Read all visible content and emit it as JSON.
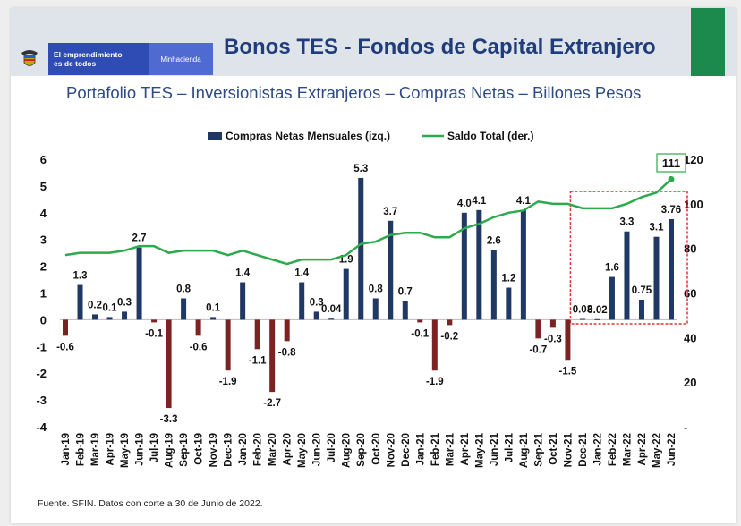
{
  "header": {
    "brand_line": "El emprendimiento\nes de todos",
    "ministry": "Minhacienda",
    "title": "Bonos TES - Fondos de Capital Extranjero"
  },
  "subtitle": "Portafolio TES – Inversionistas Extranjeros – Compras Netas – Billones Pesos",
  "footer": "Fuente. SFIN. Datos con corte a 30 de Junio de 2022.",
  "colors": {
    "header_bg": "#dfe3ea",
    "brand_blue": "#2f4bb4",
    "title_blue": "#1f3d7a",
    "bar_positive": "#1f3864",
    "bar_negative": "#7b2323",
    "line_green": "#2eaa4e",
    "highlight_red": "#e03030",
    "accent_green": "#1c8a4c"
  },
  "icons": [
    "colombia-coat-of-arms-icon"
  ],
  "chart_data": {
    "type": "bar",
    "legend_placement": "top-center",
    "grid": false,
    "categories": [
      "Jan-19",
      "Feb-19",
      "Mar-19",
      "Apr-19",
      "May-19",
      "Jun-19",
      "Jul-19",
      "Aug-19",
      "Sep-19",
      "Oct-19",
      "Nov-19",
      "Dec-19",
      "Jan-20",
      "Feb-20",
      "Mar-20",
      "Apr-20",
      "May-20",
      "Jun-20",
      "Jul-20",
      "Aug-20",
      "Sep-20",
      "Oct-20",
      "Nov-20",
      "Dec-20",
      "Jan-21",
      "Feb-21",
      "Mar-21",
      "Apr-21",
      "May-21",
      "Jun-21",
      "Jul-21",
      "Aug-21",
      "Sep-21",
      "Oct-21",
      "Nov-21",
      "Dec-21",
      "Jan-22",
      "Feb-22",
      "Mar-22",
      "Apr-22",
      "May-22",
      "Jun-22"
    ],
    "series": [
      {
        "name": "Compras Netas Mensuales (izq.)",
        "type": "bar",
        "axis": "left",
        "values": [
          -0.6,
          1.3,
          0.2,
          0.1,
          0.3,
          2.7,
          -0.1,
          -3.3,
          0.8,
          -0.6,
          0.1,
          -1.9,
          1.4,
          -1.1,
          -2.7,
          -0.8,
          1.4,
          0.3,
          0.04,
          1.9,
          5.3,
          0.8,
          3.7,
          0.7,
          -0.1,
          -1.9,
          -0.2,
          4.0,
          4.1,
          2.6,
          1.2,
          4.1,
          -0.7,
          -0.3,
          -1.5,
          0.03,
          0.02,
          1.6,
          3.3,
          0.75,
          3.1,
          3.76
        ],
        "labels": [
          "-0.6",
          "1.3",
          "0.2",
          "0.1",
          "0.3",
          "2.7",
          "-0.1",
          "-3.3",
          "0.8",
          "-0.6",
          "0.1",
          "-1.9",
          "1.4",
          "-1.1",
          "-2.7",
          "-0.8",
          "1.4",
          "0.3",
          "0.04",
          "1.9",
          "5.3",
          "0.8",
          "3.7",
          "0.7",
          "-0.1",
          "-1.9",
          "-0.2",
          "4.0",
          "4.1",
          "2.6",
          "1.2",
          "4.1",
          "-0.7",
          "-0.3",
          "-1.5",
          "0.03",
          "0.02",
          "1.6",
          "3.3",
          "0.75",
          "3.1",
          "3.76"
        ]
      },
      {
        "name": "Saldo Total (der.)",
        "type": "line",
        "axis": "right",
        "values": [
          77,
          78,
          78,
          78,
          79,
          81,
          81,
          78,
          79,
          79,
          79,
          77,
          79,
          77,
          75,
          73,
          75,
          75,
          75,
          77,
          82,
          83,
          86,
          87,
          87,
          85,
          85,
          89,
          91,
          94,
          96,
          97,
          101,
          100,
          100,
          98,
          98,
          98,
          100,
          103,
          105,
          111
        ],
        "end_label": "111"
      }
    ],
    "y_left": {
      "ylim": [
        -4,
        6
      ],
      "ticks": [
        "-4",
        "-3",
        "-2",
        "-1",
        "0",
        "1",
        "2",
        "3",
        "4",
        "5",
        "6"
      ]
    },
    "y_right": {
      "ylim": [
        0,
        120
      ],
      "ticks": [
        "-",
        "20",
        "40",
        "60",
        "80",
        "100",
        "120"
      ]
    },
    "highlight_range": [
      "Jan-22",
      "Jun-22"
    ]
  }
}
